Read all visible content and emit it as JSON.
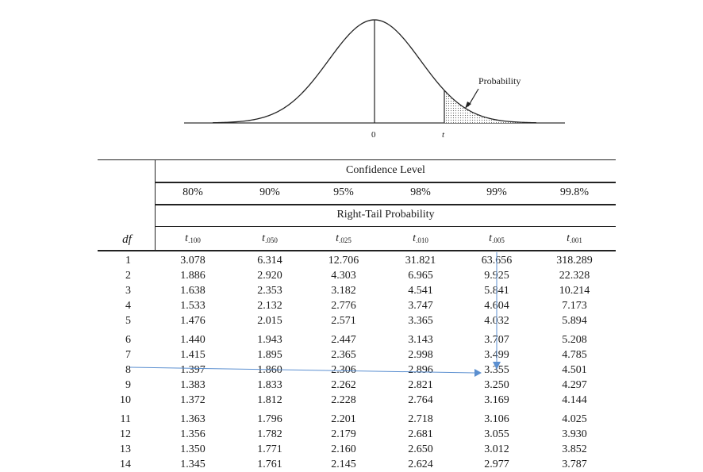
{
  "figure": {
    "probability_label": "Probability",
    "zero_label": "0",
    "t_label": "t"
  },
  "table": {
    "confidence_header": "Confidence Level",
    "right_tail_header": "Right-Tail Probability",
    "df_header": "df",
    "confidence_levels": [
      "80%",
      "90%",
      "95%",
      "98%",
      "99%",
      "99.8%"
    ],
    "t_subscripts": [
      ".100",
      ".050",
      ".025",
      ".010",
      ".005",
      ".001"
    ],
    "t_symbol": "t",
    "groups": [
      [
        {
          "df": "1",
          "values": [
            "3.078",
            "6.314",
            "12.706",
            "31.821",
            "63.656",
            "318.289"
          ]
        },
        {
          "df": "2",
          "values": [
            "1.886",
            "2.920",
            "4.303",
            "6.965",
            "9.925",
            "22.328"
          ]
        },
        {
          "df": "3",
          "values": [
            "1.638",
            "2.353",
            "3.182",
            "4.541",
            "5.841",
            "10.214"
          ]
        },
        {
          "df": "4",
          "values": [
            "1.533",
            "2.132",
            "2.776",
            "3.747",
            "4.604",
            "7.173"
          ]
        },
        {
          "df": "5",
          "values": [
            "1.476",
            "2.015",
            "2.571",
            "3.365",
            "4.032",
            "5.894"
          ]
        }
      ],
      [
        {
          "df": "6",
          "values": [
            "1.440",
            "1.943",
            "2.447",
            "3.143",
            "3.707",
            "5.208"
          ]
        },
        {
          "df": "7",
          "values": [
            "1.415",
            "1.895",
            "2.365",
            "2.998",
            "3.499",
            "4.785"
          ]
        },
        {
          "df": "8",
          "values": [
            "1.397",
            "1.860",
            "2.306",
            "2.896",
            "3.355",
            "4.501"
          ]
        },
        {
          "df": "9",
          "values": [
            "1.383",
            "1.833",
            "2.262",
            "2.821",
            "3.250",
            "4.297"
          ]
        },
        {
          "df": "10",
          "values": [
            "1.372",
            "1.812",
            "2.228",
            "2.764",
            "3.169",
            "4.144"
          ]
        }
      ],
      [
        {
          "df": "11",
          "values": [
            "1.363",
            "1.796",
            "2.201",
            "2.718",
            "3.106",
            "4.025"
          ]
        },
        {
          "df": "12",
          "values": [
            "1.356",
            "1.782",
            "2.179",
            "2.681",
            "3.055",
            "3.930"
          ]
        },
        {
          "df": "13",
          "values": [
            "1.350",
            "1.771",
            "2.160",
            "2.650",
            "3.012",
            "3.852"
          ]
        },
        {
          "df": "14",
          "values": [
            "1.345",
            "1.761",
            "2.145",
            "2.624",
            "2.977",
            "3.787"
          ]
        }
      ]
    ]
  },
  "colors": {
    "annotation_arrow": "#5b8fd0",
    "text": "#1a1a1a"
  }
}
